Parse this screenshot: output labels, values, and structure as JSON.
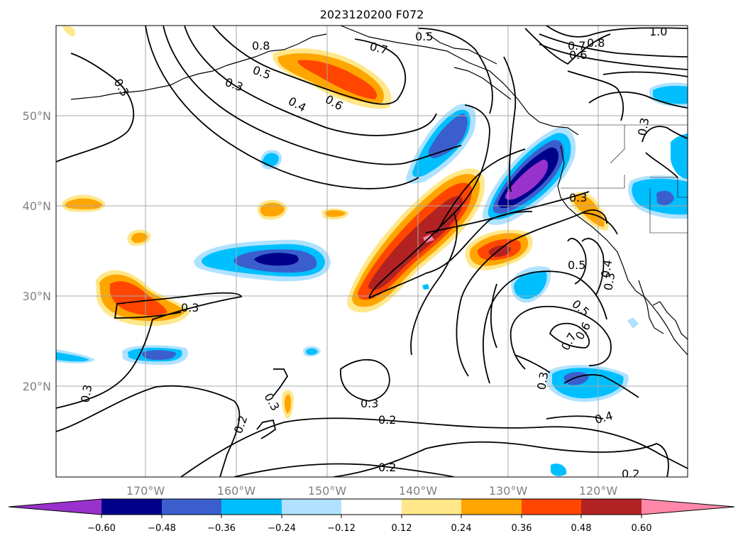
{
  "title": "2023120200 F072",
  "lat_labels": [
    "50°N",
    "40°N",
    "30°N",
    "20°N"
  ],
  "lon_labels": [
    "170°W",
    "160°W",
    "150°W",
    "140°W",
    "130°W",
    "120°W"
  ],
  "colorbar": {
    "colors": [
      "#9932cc",
      "#00008b",
      "#3a5fcd",
      "#00bfff",
      "#b0e2ff",
      "#ffffff",
      "#ffe78a",
      "#ffa500",
      "#ff4500",
      "#b22222",
      "#ff88aa"
    ],
    "ticks": [
      "−0.60",
      "−0.48",
      "−0.36",
      "−0.24",
      "−0.12",
      "0.12",
      "0.24",
      "0.36",
      "0.48",
      "0.60"
    ]
  },
  "contour_labels": [
    "0.3",
    "0.5",
    "0.3",
    "0.4",
    "0.6",
    "0.7",
    "0.5",
    "0.8",
    "0.7",
    "0.6",
    "0.8",
    "1.0",
    "0.3",
    "0.3",
    "0.3",
    "0.5",
    "0.4",
    "0.3",
    "0.5",
    "0.6",
    "0.7",
    "0.3",
    "0.3",
    "0.3",
    "0.2",
    "0.2",
    "0.2",
    "0.4",
    "0.2",
    "0.3"
  ]
}
